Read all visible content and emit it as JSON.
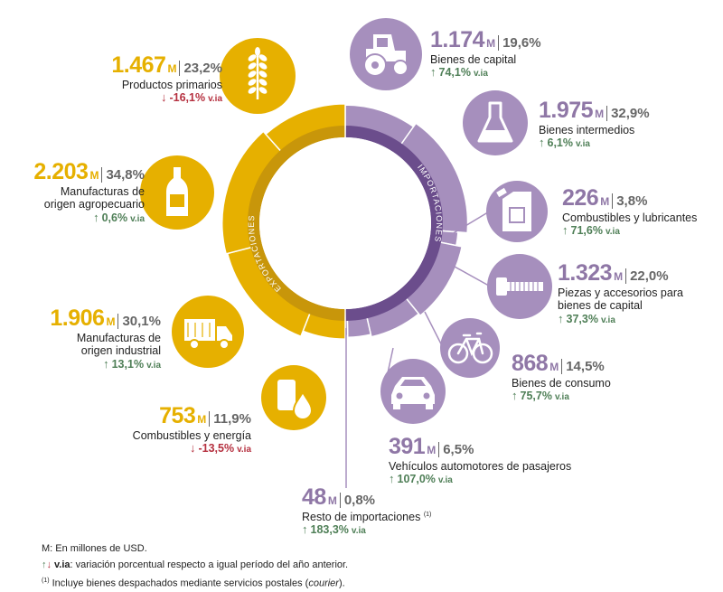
{
  "chart_data": {
    "type": "pie",
    "unit_note": "M: En millones de USD.",
    "exports": {
      "label": "EXPORTACIONES",
      "color": "#e6b000",
      "items": [
        {
          "value_text": "1.467",
          "value": 1467,
          "unit": "M",
          "share_text": "23,2%",
          "share": 23.2,
          "name": "Productos primarios",
          "change_text": "-16,1%",
          "change": -16.1,
          "direction": "down",
          "icon": "wheat-icon"
        },
        {
          "value_text": "2.203",
          "value": 2203,
          "unit": "M",
          "share_text": "34,8%",
          "share": 34.8,
          "name": "Manufacturas de origen agropecuario",
          "change_text": "0,6%",
          "change": 0.6,
          "direction": "up",
          "icon": "bottle-icon"
        },
        {
          "value_text": "1.906",
          "value": 1906,
          "unit": "M",
          "share_text": "30,1%",
          "share": 30.1,
          "name": "Manufacturas de origen industrial",
          "change_text": "13,1%",
          "change": 13.1,
          "direction": "up",
          "icon": "truck-icon"
        },
        {
          "value_text": "753",
          "value": 753,
          "unit": "M",
          "share_text": "11,9%",
          "share": 11.9,
          "name": "Combustibles y energía",
          "change_text": "-13,5%",
          "change": -13.5,
          "direction": "down",
          "icon": "fuel-drop-icon"
        }
      ]
    },
    "imports": {
      "label": "IMPORTACIONES",
      "color": "#a68fbd",
      "items": [
        {
          "value_text": "1.174",
          "value": 1174,
          "unit": "M",
          "share_text": "19,6%",
          "share": 19.6,
          "name": "Bienes de capital",
          "change_text": "74,1%",
          "change": 74.1,
          "direction": "up",
          "icon": "tractor-icon"
        },
        {
          "value_text": "1.975",
          "value": 1975,
          "unit": "M",
          "share_text": "32,9%",
          "share": 32.9,
          "name": "Bienes intermedios",
          "change_text": "6,1%",
          "change": 6.1,
          "direction": "up",
          "icon": "flask-icon"
        },
        {
          "value_text": "226",
          "value": 226,
          "unit": "M",
          "share_text": "3,8%",
          "share": 3.8,
          "name": "Combustibles y lubricantes",
          "change_text": "71,6%",
          "change": 71.6,
          "direction": "up",
          "icon": "jerrycan-icon"
        },
        {
          "value_text": "1.323",
          "value": 1323,
          "unit": "M",
          "share_text": "22,0%",
          "share": 22.0,
          "name": "Piezas y accesorios para bienes de capital",
          "change_text": "37,3%",
          "change": 37.3,
          "direction": "up",
          "icon": "bolt-icon"
        },
        {
          "value_text": "868",
          "value": 868,
          "unit": "M",
          "share_text": "14,5%",
          "share": 14.5,
          "name": "Bienes de consumo",
          "change_text": "75,7%",
          "change": 75.7,
          "direction": "up",
          "icon": "bicycle-icon"
        },
        {
          "value_text": "391",
          "value": 391,
          "unit": "M",
          "share_text": "6,5%",
          "share": 6.5,
          "name": "Vehículos automotores de pasajeros",
          "change_text": "107,0%",
          "change": 107.0,
          "direction": "up",
          "icon": "car-icon"
        },
        {
          "value_text": "48",
          "value": 48,
          "unit": "M",
          "share_text": "0,8%",
          "share": 0.8,
          "name": "Resto de importaciones",
          "footnote": "(1)",
          "change_text": "183,3%",
          "change": 183.3,
          "direction": "up",
          "icon": ""
        }
      ]
    }
  },
  "notes": {
    "unit": "M: En millones de USD.",
    "via_label": "v.ia",
    "via_text": ": variación porcentual respecto a igual período del año anterior.",
    "footnote_mark": "(1)",
    "footnote_text_before": " Incluye bienes despachados mediante servicios postales (",
    "footnote_italic": "courier",
    "footnote_text_after": ")."
  }
}
